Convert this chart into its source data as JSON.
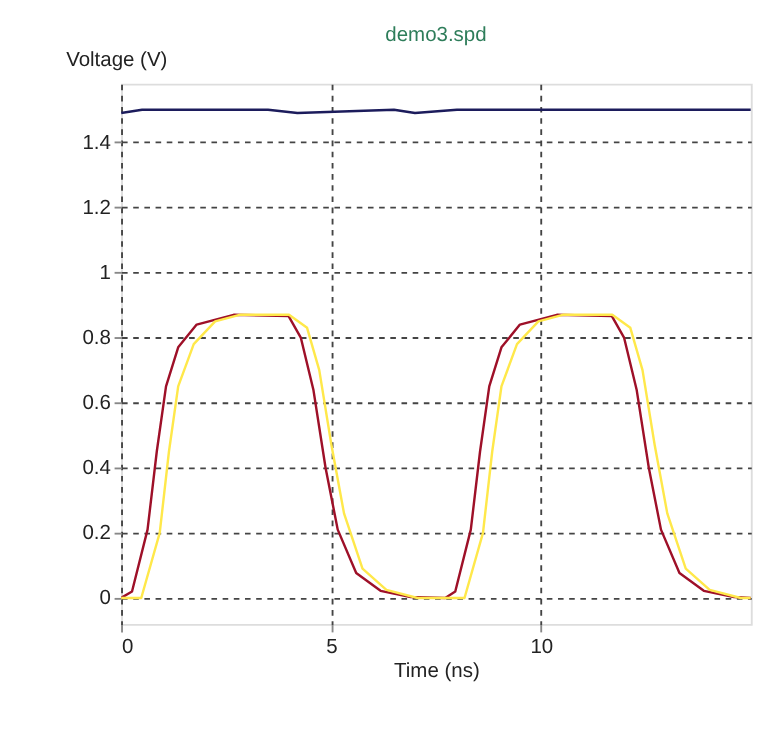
{
  "chart_data": {
    "type": "line",
    "title": "demo3.spd",
    "xlabel": "Time (ns)",
    "ylabel": "Voltage (V)",
    "xlim": [
      0,
      15
    ],
    "xticks": [
      0,
      5,
      10
    ],
    "ylim": [
      -0.08,
      1.58
    ],
    "yticks": [
      0,
      0.2,
      0.4,
      0.6,
      0.8,
      1,
      1.2,
      1.4
    ],
    "grid": true,
    "legend": false,
    "line_style": "solid",
    "marker": "none",
    "series": [
      {
        "color": "#1c1c5c",
        "x": [
          0,
          0.5,
          1.2,
          3.5,
          4.2,
          6.5,
          7.0,
          8.0,
          10.0,
          11.5,
          12.3,
          15
        ],
        "values": [
          1.49,
          1.5,
          1.5,
          1.5,
          1.49,
          1.5,
          1.49,
          1.5,
          1.5,
          1.5,
          1.5,
          1.5
        ]
      },
      {
        "color": "#9e1028",
        "x": [
          0,
          0.26,
          0.63,
          0.85,
          1.07,
          1.36,
          1.8,
          2.68,
          3.99,
          4.28,
          4.58,
          4.87,
          5.16,
          5.6,
          6.18,
          6.9,
          7.72,
          7.96,
          8.33,
          8.55,
          8.77,
          9.06,
          9.5,
          10.38,
          11.69,
          11.98,
          12.28,
          12.57,
          12.86,
          13.3,
          13.88,
          14.6,
          15
        ],
        "values": [
          0,
          0.02,
          0.21,
          0.45,
          0.65,
          0.77,
          0.84,
          0.87,
          0.866,
          0.8,
          0.64,
          0.4,
          0.21,
          0.077,
          0.022,
          0.003,
          0,
          0.02,
          0.21,
          0.45,
          0.65,
          0.77,
          0.84,
          0.87,
          0.866,
          0.8,
          0.64,
          0.4,
          0.21,
          0.077,
          0.022,
          0.003,
          0
        ]
      },
      {
        "color": "#ffe84a",
        "x": [
          0,
          0.48,
          0.92,
          1.14,
          1.36,
          1.73,
          2.24,
          2.82,
          4.0,
          4.43,
          4.72,
          5.01,
          5.31,
          5.75,
          6.32,
          7.06,
          8.18,
          8.62,
          8.84,
          9.06,
          9.43,
          9.94,
          10.52,
          11.7,
          12.13,
          12.42,
          12.71,
          13.01,
          13.45,
          14.02,
          14.76,
          15
        ],
        "values": [
          0,
          0,
          0.2,
          0.45,
          0.65,
          0.78,
          0.85,
          0.87,
          0.87,
          0.83,
          0.7,
          0.47,
          0.26,
          0.09,
          0.025,
          0,
          0,
          0.2,
          0.45,
          0.65,
          0.78,
          0.85,
          0.87,
          0.87,
          0.83,
          0.7,
          0.47,
          0.26,
          0.09,
          0.025,
          0,
          0
        ]
      }
    ]
  }
}
